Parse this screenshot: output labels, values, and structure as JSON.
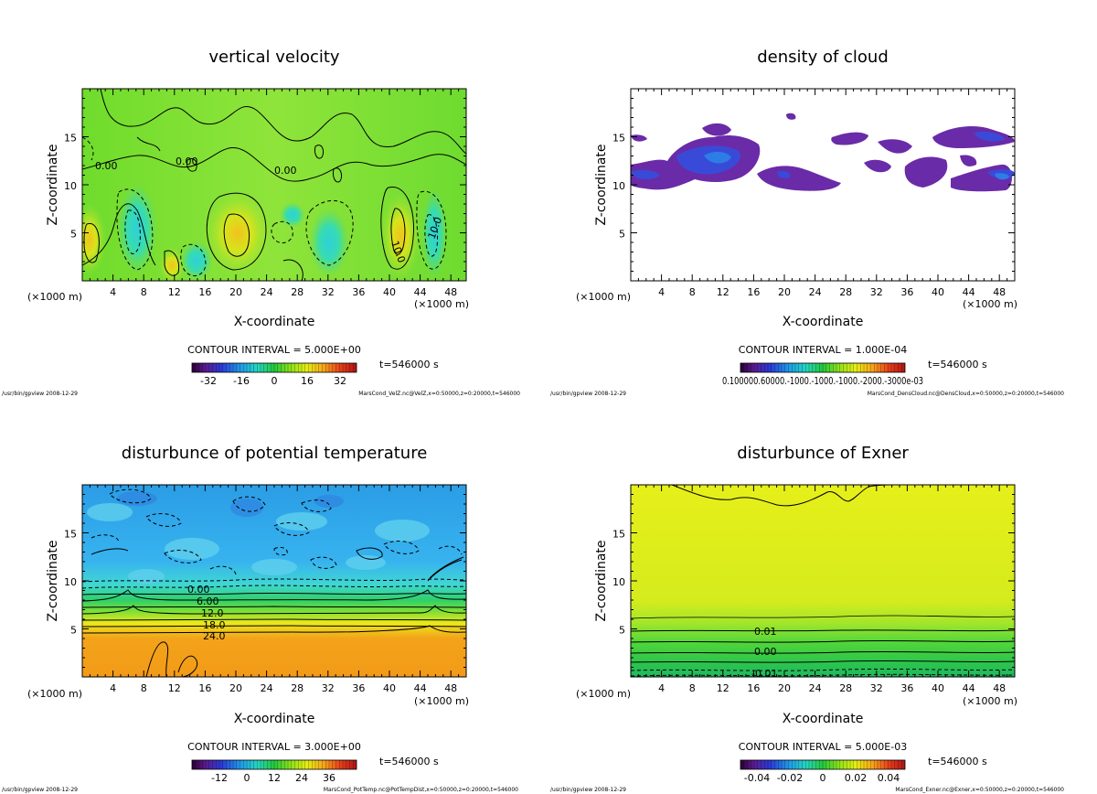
{
  "chart_data": [
    {
      "type": "heatmap",
      "title": "vertical velocity",
      "xlabel": "X-coordinate",
      "ylabel": "Z-coordinate",
      "xunit_left": "(×1000 m)",
      "xunit_right": "(×1000 m)",
      "xlim": [
        0,
        50
      ],
      "ylim": [
        0,
        20
      ],
      "xticks": [
        4,
        8,
        12,
        16,
        20,
        24,
        28,
        32,
        36,
        40,
        44,
        48
      ],
      "yticks": [
        5,
        10,
        15
      ],
      "contour_interval": "CONTOUR INTERVAL = 5.000E+00",
      "colorbar_ticks": [
        "-32",
        "-16",
        "0",
        "16",
        "32"
      ],
      "colorbar_range": [
        -40,
        40
      ],
      "time": "t=546000 s",
      "footer_left": "/usr/bin/gpview  2008-12-29",
      "footer_right": "MarsCond_VelZ.nc@VelZ,x=0:50000,z=0:20000,t=546000",
      "contour_labels": [
        "0.00",
        "0.00",
        "0.00",
        "10.0",
        "10.0"
      ]
    },
    {
      "type": "heatmap",
      "title": "density of cloud",
      "xlabel": "X-coordinate",
      "ylabel": "Z-coordinate",
      "xunit_left": "(×1000 m)",
      "xunit_right": "(×1000 m)",
      "xlim": [
        0,
        50
      ],
      "ylim": [
        0,
        20
      ],
      "xticks": [
        4,
        8,
        12,
        16,
        20,
        24,
        28,
        32,
        36,
        40,
        44,
        48
      ],
      "yticks": [
        5,
        10,
        15
      ],
      "contour_interval": "CONTOUR INTERVAL = 1.000E-04",
      "colorbar_ticks": [
        "0.100000.60000.-1000.-1000.-1000.-2000.-3000e-03"
      ],
      "time": "t=546000 s",
      "footer_left": "/usr/bin/gpview  2008-12-29",
      "footer_right": "MarsCond_DensCloud.nc@DensCloud,x=0:50000,z=0:20000,t=546000"
    },
    {
      "type": "heatmap",
      "title": "disturbunce of potential temperature",
      "xlabel": "X-coordinate",
      "ylabel": "Z-coordinate",
      "xunit_left": "(×1000 m)",
      "xunit_right": "(×1000 m)",
      "xlim": [
        0,
        50
      ],
      "ylim": [
        0,
        20
      ],
      "xticks": [
        4,
        8,
        12,
        16,
        20,
        24,
        28,
        32,
        36,
        40,
        44,
        48
      ],
      "yticks": [
        5,
        10,
        15
      ],
      "contour_interval": "CONTOUR INTERVAL = 3.000E+00",
      "colorbar_ticks": [
        "-12",
        "0",
        "12",
        "24",
        "36"
      ],
      "colorbar_range": [
        -24,
        48
      ],
      "time": "t=546000 s",
      "footer_left": "/usr/bin/gpview  2008-12-29",
      "footer_right": "MarsCond_PotTemp.nc@PotTempDist,x=0:50000,z=0:20000,t=546000",
      "contour_labels": [
        "0.00",
        "6.00",
        "12.0",
        "18.0",
        "24.0"
      ]
    },
    {
      "type": "heatmap",
      "title": "disturbunce of Exner",
      "xlabel": "X-coordinate",
      "ylabel": "Z-coordinate",
      "xunit_left": "(×1000 m)",
      "xunit_right": "(×1000 m)",
      "xlim": [
        0,
        50
      ],
      "ylim": [
        0,
        20
      ],
      "xticks": [
        4,
        8,
        12,
        16,
        20,
        24,
        28,
        32,
        36,
        40,
        44,
        48
      ],
      "yticks": [
        5,
        10,
        15
      ],
      "contour_interval": "CONTOUR INTERVAL = 5.000E-03",
      "colorbar_ticks": [
        "-0.04",
        "-0.02",
        "0",
        "0.02",
        "0.04"
      ],
      "colorbar_range": [
        -0.05,
        0.05
      ],
      "time": "t=546000 s",
      "footer_left": "/usr/bin/gpview  2008-12-29",
      "footer_right": "MarsCond_Exner.nc@Exner,x=0:50000,z=0:20000,t=546000",
      "contour_labels": [
        "0.01",
        "0.00",
        "-0.01"
      ]
    }
  ]
}
